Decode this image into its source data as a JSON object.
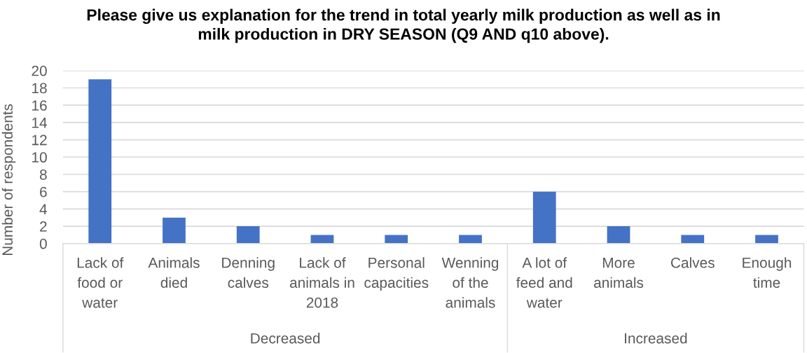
{
  "chart_data": {
    "type": "bar",
    "title": "Please give us explanation for the trend in total yearly milk production as well as in\nmilk production in DRY SEASON (Q9 AND q10 above).",
    "ylabel": "Number of respondents",
    "categories": [
      "Lack of\nfood or\nwater",
      "Animals\ndied",
      "Denning\ncalves",
      "Lack of\nanimals in\n2018",
      "Personal\ncapacities",
      "Wenning\nof the\nanimals",
      "A lot of\nfeed and\nwater",
      "More\nanimals",
      "Calves",
      "Enough\ntime"
    ],
    "series": [
      {
        "color": "#4472c4",
        "values": [
          19,
          3,
          2,
          1,
          1,
          1,
          null,
          null,
          null,
          null
        ]
      },
      {
        "color": "#4472c4",
        "values": [
          null,
          null,
          null,
          null,
          null,
          null,
          6,
          2,
          1,
          1
        ]
      }
    ],
    "annotations": [
      "Decreased",
      "Increased"
    ],
    "ylim": [
      0,
      20
    ],
    "yticks": [
      0,
      2,
      4,
      6,
      8,
      10,
      12,
      14,
      16,
      18,
      20
    ],
    "grid": "y"
  }
}
